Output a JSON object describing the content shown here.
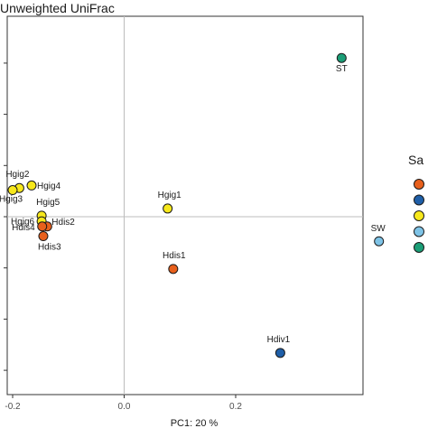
{
  "chart_data": {
    "type": "scatter",
    "title": "Unweighted UniFrac",
    "xlabel": "PC1:  20 %",
    "ylabel": "",
    "xlim": [
      -0.22,
      0.52
    ],
    "ylim": [
      -0.32,
      0.33
    ],
    "x_ticks": [
      -0.2,
      0.0,
      0.2
    ],
    "x_tick_labels": [
      "-0.2",
      "0.0",
      "0.2"
    ],
    "grid": false,
    "zero_lines": true,
    "legend": {
      "title": "Sa",
      "placement": "right",
      "entry_colors": [
        "#e8601c",
        "#1f5fa8",
        "#f7e81c",
        "#7ec3e6",
        "#1b9e77"
      ]
    },
    "colors": {
      "Hdis": "#e8601c",
      "Hdiv": "#1f5fa8",
      "Hgig": "#f7e81c",
      "SW": "#7ec3e6",
      "ST": "#1b9e77"
    },
    "points": [
      {
        "label": "ST",
        "group": "ST",
        "x": 0.39,
        "y": 0.31
      },
      {
        "label": "SW",
        "group": "SW",
        "x": 0.457,
        "y": -0.048
      },
      {
        "label": "Hgig1",
        "group": "Hgig",
        "x": 0.078,
        "y": 0.016
      },
      {
        "label": "Hdis1",
        "group": "Hdis",
        "x": 0.088,
        "y": -0.102
      },
      {
        "label": "Hdiv1",
        "group": "Hdiv",
        "x": 0.28,
        "y": -0.266
      },
      {
        "label": "Hgig2",
        "group": "Hgig",
        "x": -0.188,
        "y": 0.056
      },
      {
        "label": "Hgig4",
        "group": "Hgig",
        "x": -0.166,
        "y": 0.061
      },
      {
        "label": "Hgig3",
        "group": "Hgig",
        "x": -0.2,
        "y": 0.052
      },
      {
        "label": "Hgig5",
        "group": "Hgig",
        "x": -0.148,
        "y": 0.002
      },
      {
        "label": "Hgig6",
        "group": "Hgig",
        "x": -0.148,
        "y": -0.009
      },
      {
        "label": "Hdis2",
        "group": "Hdis",
        "x": -0.138,
        "y": -0.019
      },
      {
        "label": "Hdis4",
        "group": "Hdis",
        "x": -0.147,
        "y": -0.019
      },
      {
        "label": "Hdis3",
        "group": "Hdis",
        "x": -0.145,
        "y": -0.038
      }
    ]
  }
}
